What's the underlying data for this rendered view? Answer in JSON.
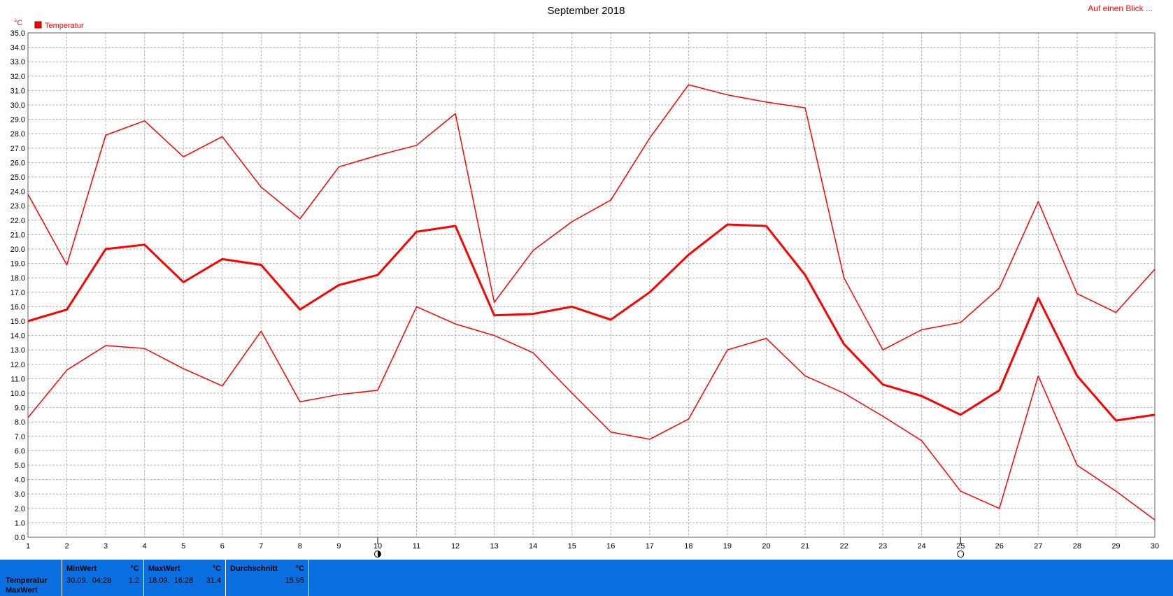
{
  "header": {
    "title": "September 2018",
    "link": "Auf einen Blick ..."
  },
  "chart_data": {
    "type": "line",
    "title": "September 2018",
    "ylabel": "°C",
    "xlabel": "",
    "ylim": [
      0,
      35
    ],
    "ystep": 1,
    "y_tick_format": "0.0",
    "grid": true,
    "legend": {
      "placement": "top-left",
      "entries": [
        "Temperatur"
      ]
    },
    "x": [
      1,
      2,
      3,
      4,
      5,
      6,
      7,
      8,
      9,
      10,
      11,
      12,
      13,
      14,
      15,
      16,
      17,
      18,
      19,
      20,
      21,
      22,
      23,
      24,
      25,
      26,
      27,
      28,
      29,
      30
    ],
    "colors": {
      "line": "#ff0000",
      "legend": "#ff0000",
      "grid": "#b0b0b0",
      "stats_bg": "#0a6fe0"
    },
    "series": [
      {
        "role": "max",
        "width": 1.5,
        "values": [
          23.8,
          18.9,
          27.9,
          28.9,
          26.4,
          27.8,
          24.3,
          22.1,
          25.7,
          26.5,
          27.2,
          29.4,
          16.3,
          19.9,
          21.9,
          23.4,
          27.7,
          31.4,
          30.7,
          30.2,
          29.8,
          18.0,
          13.0,
          14.4,
          14.9,
          17.3,
          23.3,
          16.9,
          15.6,
          18.6
        ]
      },
      {
        "role": "avg",
        "width": 3,
        "values": [
          15.0,
          15.8,
          20.0,
          20.3,
          17.7,
          19.3,
          18.9,
          15.8,
          17.5,
          18.2,
          21.2,
          21.6,
          15.4,
          15.5,
          16.0,
          15.1,
          17.0,
          19.6,
          21.7,
          21.6,
          18.2,
          13.4,
          10.6,
          9.8,
          8.5,
          10.2,
          16.6,
          11.2,
          8.1,
          8.5
        ]
      },
      {
        "role": "min",
        "width": 1.5,
        "values": [
          8.3,
          11.6,
          13.3,
          13.1,
          11.7,
          10.5,
          14.3,
          9.4,
          9.9,
          10.2,
          16.0,
          14.8,
          14.0,
          12.8,
          10.0,
          7.3,
          6.8,
          8.2,
          13.0,
          13.8,
          11.2,
          10.0,
          8.4,
          6.7,
          3.2,
          2.0,
          11.2,
          5.0,
          3.2,
          1.2
        ]
      }
    ],
    "moon_markers": [
      {
        "x": 10,
        "phase": "new-moon"
      },
      {
        "x": 25,
        "phase": "full-moon"
      }
    ]
  },
  "stats": {
    "row_labels": [
      "Temperatur",
      "MaxWert"
    ],
    "min": {
      "header": "MinWert",
      "unit": "°C",
      "date": "30.09.  04:28",
      "value": "1.2"
    },
    "max": {
      "header": "MaxWert",
      "unit": "°C",
      "date": "18.09.  16:28",
      "value": "31.4"
    },
    "avg": {
      "header": "Durchschnitt",
      "unit": "°C",
      "value": "15.95"
    }
  }
}
